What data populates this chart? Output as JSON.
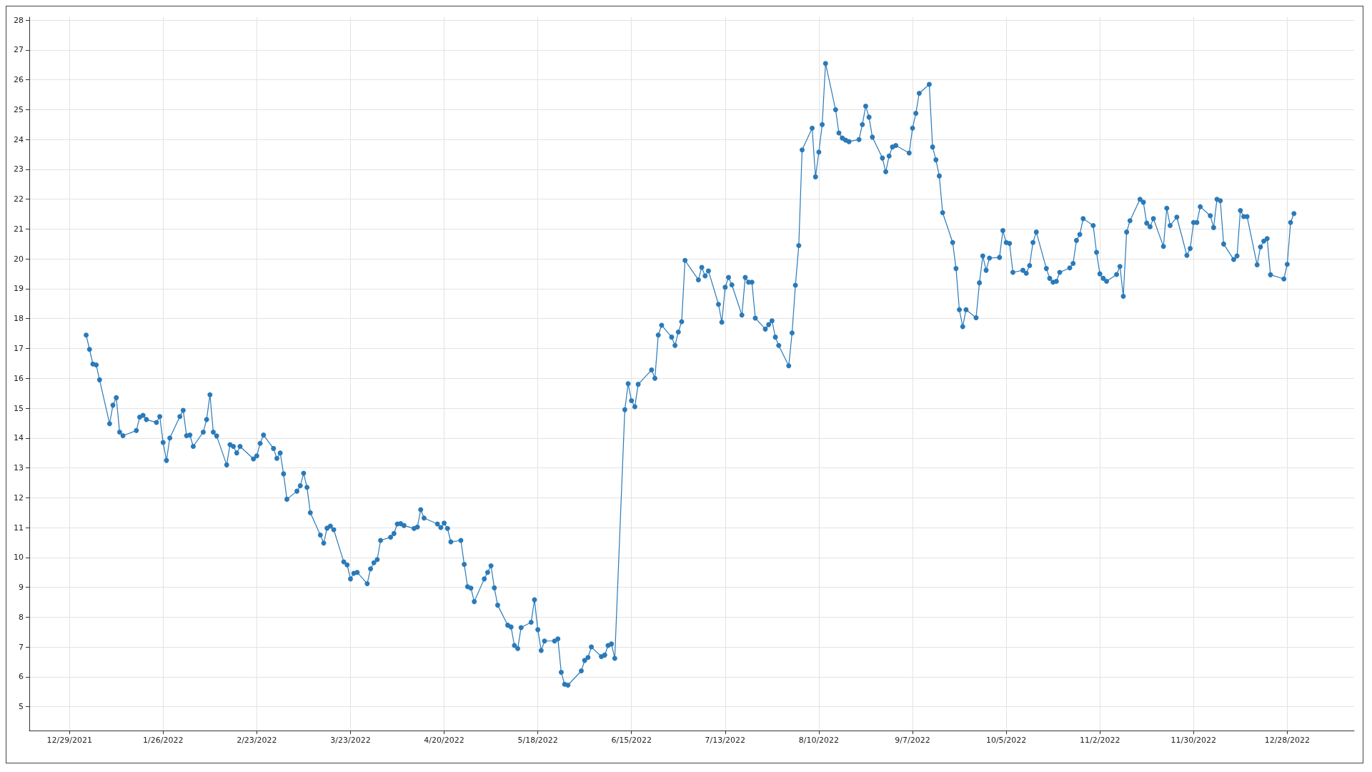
{
  "chart_data": {
    "type": "line",
    "color": "#2a7ab9",
    "marker": "circle",
    "line_style": "solid",
    "grid": true,
    "xlim": [
      "2021-12-17",
      "2023-01-17"
    ],
    "xticks": [
      {
        "value": "2021-12-29",
        "label": "12/29/2021"
      },
      {
        "value": "2022-01-26",
        "label": "1/26/2022"
      },
      {
        "value": "2022-02-23",
        "label": "2/23/2022"
      },
      {
        "value": "2022-03-23",
        "label": "3/23/2022"
      },
      {
        "value": "2022-04-20",
        "label": "4/20/2022"
      },
      {
        "value": "2022-05-18",
        "label": "5/18/2022"
      },
      {
        "value": "2022-06-15",
        "label": "6/15/2022"
      },
      {
        "value": "2022-07-13",
        "label": "7/13/2022"
      },
      {
        "value": "2022-08-10",
        "label": "8/10/2022"
      },
      {
        "value": "2022-09-07",
        "label": "9/7/2022"
      },
      {
        "value": "2022-10-05",
        "label": "10/5/2022"
      },
      {
        "value": "2022-11-02",
        "label": "11/2/2022"
      },
      {
        "value": "2022-11-30",
        "label": "11/30/2022"
      },
      {
        "value": "2022-12-28",
        "label": "12/28/2022"
      }
    ],
    "ylim": [
      4.2,
      28.1
    ],
    "yticks": [
      5,
      6,
      7,
      8,
      9,
      10,
      11,
      12,
      13,
      14,
      15,
      16,
      17,
      18,
      19,
      20,
      21,
      22,
      23,
      24,
      25,
      26,
      27,
      28
    ],
    "x": [
      "2022-01-03",
      "2022-01-04",
      "2022-01-05",
      "2022-01-06",
      "2022-01-07",
      "2022-01-10",
      "2022-01-11",
      "2022-01-12",
      "2022-01-13",
      "2022-01-14",
      "2022-01-18",
      "2022-01-19",
      "2022-01-20",
      "2022-01-21",
      "2022-01-24",
      "2022-01-25",
      "2022-01-26",
      "2022-01-27",
      "2022-01-28",
      "2022-01-31",
      "2022-02-01",
      "2022-02-02",
      "2022-02-03",
      "2022-02-04",
      "2022-02-07",
      "2022-02-08",
      "2022-02-09",
      "2022-02-10",
      "2022-02-11",
      "2022-02-14",
      "2022-02-15",
      "2022-02-16",
      "2022-02-17",
      "2022-02-18",
      "2022-02-22",
      "2022-02-23",
      "2022-02-24",
      "2022-02-25",
      "2022-02-28",
      "2022-03-01",
      "2022-03-02",
      "2022-03-03",
      "2022-03-04",
      "2022-03-07",
      "2022-03-08",
      "2022-03-09",
      "2022-03-10",
      "2022-03-11",
      "2022-03-14",
      "2022-03-15",
      "2022-03-16",
      "2022-03-17",
      "2022-03-18",
      "2022-03-21",
      "2022-03-22",
      "2022-03-23",
      "2022-03-24",
      "2022-03-25",
      "2022-03-28",
      "2022-03-29",
      "2022-03-30",
      "2022-03-31",
      "2022-04-01",
      "2022-04-04",
      "2022-04-05",
      "2022-04-06",
      "2022-04-07",
      "2022-04-08",
      "2022-04-11",
      "2022-04-12",
      "2022-04-13",
      "2022-04-14",
      "2022-04-18",
      "2022-04-19",
      "2022-04-20",
      "2022-04-21",
      "2022-04-22",
      "2022-04-25",
      "2022-04-26",
      "2022-04-27",
      "2022-04-28",
      "2022-04-29",
      "2022-05-02",
      "2022-05-03",
      "2022-05-04",
      "2022-05-05",
      "2022-05-06",
      "2022-05-09",
      "2022-05-10",
      "2022-05-11",
      "2022-05-12",
      "2022-05-13",
      "2022-05-16",
      "2022-05-17",
      "2022-05-18",
      "2022-05-19",
      "2022-05-20",
      "2022-05-23",
      "2022-05-24",
      "2022-05-25",
      "2022-05-26",
      "2022-05-27",
      "2022-05-31",
      "2022-06-01",
      "2022-06-02",
      "2022-06-03",
      "2022-06-06",
      "2022-06-07",
      "2022-06-08",
      "2022-06-09",
      "2022-06-10",
      "2022-06-13",
      "2022-06-14",
      "2022-06-15",
      "2022-06-16",
      "2022-06-17",
      "2022-06-21",
      "2022-06-22",
      "2022-06-23",
      "2022-06-24",
      "2022-06-27",
      "2022-06-28",
      "2022-06-29",
      "2022-06-30",
      "2022-07-01",
      "2022-07-05",
      "2022-07-06",
      "2022-07-07",
      "2022-07-08",
      "2022-07-11",
      "2022-07-12",
      "2022-07-13",
      "2022-07-14",
      "2022-07-15",
      "2022-07-18",
      "2022-07-19",
      "2022-07-20",
      "2022-07-21",
      "2022-07-22",
      "2022-07-25",
      "2022-07-26",
      "2022-07-27",
      "2022-07-28",
      "2022-07-29",
      "2022-08-01",
      "2022-08-02",
      "2022-08-03",
      "2022-08-04",
      "2022-08-05",
      "2022-08-08",
      "2022-08-09",
      "2022-08-10",
      "2022-08-11",
      "2022-08-12",
      "2022-08-15",
      "2022-08-16",
      "2022-08-17",
      "2022-08-18",
      "2022-08-19",
      "2022-08-22",
      "2022-08-23",
      "2022-08-24",
      "2022-08-25",
      "2022-08-26",
      "2022-08-29",
      "2022-08-30",
      "2022-08-31",
      "2022-09-01",
      "2022-09-02",
      "2022-09-06",
      "2022-09-07",
      "2022-09-08",
      "2022-09-09",
      "2022-09-12",
      "2022-09-13",
      "2022-09-14",
      "2022-09-15",
      "2022-09-16",
      "2022-09-19",
      "2022-09-20",
      "2022-09-21",
      "2022-09-22",
      "2022-09-23",
      "2022-09-26",
      "2022-09-27",
      "2022-09-28",
      "2022-09-29",
      "2022-09-30",
      "2022-10-03",
      "2022-10-04",
      "2022-10-05",
      "2022-10-06",
      "2022-10-07",
      "2022-10-10",
      "2022-10-11",
      "2022-10-12",
      "2022-10-13",
      "2022-10-14",
      "2022-10-17",
      "2022-10-18",
      "2022-10-19",
      "2022-10-20",
      "2022-10-21",
      "2022-10-24",
      "2022-10-25",
      "2022-10-26",
      "2022-10-27",
      "2022-10-28",
      "2022-10-31",
      "2022-11-01",
      "2022-11-02",
      "2022-11-03",
      "2022-11-04",
      "2022-11-07",
      "2022-11-08",
      "2022-11-09",
      "2022-11-10",
      "2022-11-11",
      "2022-11-14",
      "2022-11-15",
      "2022-11-16",
      "2022-11-17",
      "2022-11-18",
      "2022-11-21",
      "2022-11-22",
      "2022-11-23",
      "2022-11-25",
      "2022-11-28",
      "2022-11-29",
      "2022-11-30",
      "2022-12-01",
      "2022-12-02",
      "2022-12-05",
      "2022-12-06",
      "2022-12-07",
      "2022-12-08",
      "2022-12-09",
      "2022-12-12",
      "2022-12-13",
      "2022-12-14",
      "2022-12-15",
      "2022-12-16",
      "2022-12-19",
      "2022-12-20",
      "2022-12-21",
      "2022-12-22",
      "2022-12-23",
      "2022-12-27",
      "2022-12-28",
      "2022-12-29",
      "2022-12-30"
    ],
    "values": [
      17.45,
      16.97,
      16.48,
      16.45,
      15.95,
      14.48,
      15.1,
      15.35,
      14.2,
      14.08,
      14.25,
      14.7,
      14.76,
      14.62,
      14.52,
      14.72,
      13.85,
      13.25,
      14.0,
      14.72,
      14.93,
      14.08,
      14.1,
      13.72,
      14.2,
      14.62,
      15.45,
      14.2,
      14.07,
      13.1,
      13.78,
      13.72,
      13.5,
      13.72,
      13.3,
      13.4,
      13.82,
      14.1,
      13.65,
      13.32,
      13.5,
      12.8,
      11.95,
      12.22,
      12.4,
      12.82,
      12.35,
      11.5,
      10.75,
      10.48,
      10.98,
      11.05,
      10.93,
      9.85,
      9.75,
      9.28,
      9.47,
      9.5,
      9.12,
      9.62,
      9.82,
      9.93,
      10.57,
      10.68,
      10.8,
      11.12,
      11.13,
      11.07,
      10.97,
      11.02,
      11.6,
      11.32,
      11.12,
      11.0,
      11.15,
      10.97,
      10.52,
      10.57,
      9.77,
      9.02,
      8.97,
      8.52,
      9.28,
      9.5,
      9.72,
      8.98,
      8.4,
      7.73,
      7.67,
      7.05,
      6.95,
      7.65,
      7.83,
      8.58,
      7.58,
      6.88,
      7.2,
      7.2,
      7.27,
      6.15,
      5.75,
      5.72,
      6.2,
      6.55,
      6.65,
      7.0,
      6.68,
      6.73,
      7.05,
      7.1,
      6.62,
      14.95,
      15.82,
      15.25,
      15.05,
      15.8,
      16.28,
      16.0,
      17.45,
      17.78,
      17.38,
      17.1,
      17.55,
      17.9,
      19.95,
      19.3,
      19.72,
      19.43,
      19.6,
      18.48,
      17.88,
      19.05,
      19.38,
      19.13,
      18.12,
      19.38,
      19.22,
      19.22,
      18.02,
      17.65,
      17.8,
      17.93,
      17.38,
      17.1,
      16.42,
      17.52,
      19.12,
      20.45,
      23.65,
      24.38,
      22.75,
      23.58,
      24.5,
      26.55,
      25.0,
      24.22,
      24.05,
      23.98,
      23.93,
      24.0,
      24.5,
      25.12,
      24.75,
      24.08,
      23.38,
      22.92,
      23.45,
      23.75,
      23.8,
      23.55,
      24.38,
      24.88,
      25.55,
      25.85,
      23.75,
      23.32,
      22.78,
      21.55,
      20.55,
      19.68,
      18.3,
      17.73,
      18.3,
      18.03,
      19.2,
      20.1,
      19.62,
      20.03,
      20.05,
      20.95,
      20.55,
      20.52,
      19.55,
      19.62,
      19.52,
      19.78,
      20.55,
      20.9,
      19.68,
      19.35,
      19.22,
      19.25,
      19.55,
      19.7,
      19.85,
      20.62,
      20.82,
      21.35,
      21.12,
      20.22,
      19.5,
      19.35,
      19.25,
      19.48,
      19.75,
      18.75,
      20.9,
      21.28,
      22.0,
      21.9,
      21.2,
      21.08,
      21.35,
      20.42,
      21.7,
      21.12,
      21.4,
      20.12,
      20.35,
      21.22,
      21.22,
      21.75,
      21.45,
      21.05,
      22.0,
      21.95,
      20.5,
      19.98,
      20.1,
      21.62,
      21.42,
      21.42,
      19.8,
      20.4,
      20.6,
      20.68,
      19.47,
      19.33,
      19.82,
      21.22,
      21.52
    ]
  }
}
